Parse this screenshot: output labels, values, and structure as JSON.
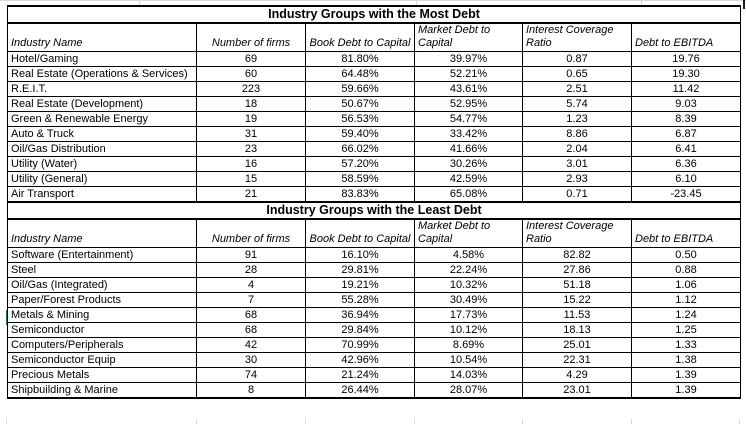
{
  "colors": {
    "table_border": "#000000",
    "grid_line": "#d9d9d9",
    "selection_marker_green": "#1f7244",
    "text": "#000000",
    "background": "#ffffff"
  },
  "tables": [
    {
      "title": "Industry Groups with the Most Debt",
      "columns": [
        "Industry Name",
        "Number of firms",
        "Book Debt to Capital",
        "Market Debt to Capital",
        "Interest Coverage Ratio",
        "Debt to EBITDA"
      ],
      "rows": [
        [
          "Hotel/Gaming",
          "69",
          "81.80%",
          "39.97%",
          "0.87",
          "19.76"
        ],
        [
          "Real Estate (Operations & Services)",
          "60",
          "64.48%",
          "52.21%",
          "0.65",
          "19.30"
        ],
        [
          "R.E.I.T.",
          "223",
          "59.66%",
          "43.61%",
          "2.51",
          "11.42"
        ],
        [
          "Real Estate (Development)",
          "18",
          "50.67%",
          "52.95%",
          "5.74",
          "9.03"
        ],
        [
          "Green & Renewable Energy",
          "19",
          "56.53%",
          "54.77%",
          "1.23",
          "8.39"
        ],
        [
          "Auto & Truck",
          "31",
          "59.40%",
          "33.42%",
          "8.86",
          "6.87"
        ],
        [
          "Oil/Gas Distribution",
          "23",
          "66.02%",
          "41.66%",
          "2.04",
          "6.41"
        ],
        [
          "Utility (Water)",
          "16",
          "57.20%",
          "30.26%",
          "3.01",
          "6.36"
        ],
        [
          "Utility (General)",
          "15",
          "58.59%",
          "42.59%",
          "2.93",
          "6.10"
        ],
        [
          "Air Transport",
          "21",
          "83.83%",
          "65.08%",
          "0.71",
          "-23.45"
        ]
      ]
    },
    {
      "title": "Industry Groups with the Least Debt",
      "columns": [
        "Industry Name",
        "Number of firms",
        "Book Debt to Capital",
        "Market Debt to Capital",
        "Interest Coverage Ratio",
        "Debt to EBITDA"
      ],
      "rows": [
        [
          "Software (Entertainment)",
          "91",
          "16.10%",
          "4.58%",
          "82.82",
          "0.50"
        ],
        [
          "Steel",
          "28",
          "29.81%",
          "22.24%",
          "27.86",
          "0.88"
        ],
        [
          "Oil/Gas (Integrated)",
          "4",
          "19.21%",
          "10.32%",
          "51.18",
          "1.06"
        ],
        [
          "Paper/Forest Products",
          "7",
          "55.28%",
          "30.49%",
          "15.22",
          "1.12"
        ],
        [
          "Metals & Mining",
          "68",
          "36.94%",
          "17.73%",
          "11.53",
          "1.24"
        ],
        [
          "Semiconductor",
          "68",
          "29.84%",
          "10.12%",
          "18.13",
          "1.25"
        ],
        [
          "Computers/Peripherals",
          "42",
          "70.99%",
          "8.69%",
          "25.01",
          "1.33"
        ],
        [
          "Semiconductor Equip",
          "30",
          "42.96%",
          "10.54%",
          "22.31",
          "1.38"
        ],
        [
          "Precious Metals",
          "74",
          "21.24%",
          "14.03%",
          "4.29",
          "1.39"
        ],
        [
          "Shipbuilding & Marine",
          "8",
          "26.44%",
          "28.07%",
          "23.01",
          "1.39"
        ]
      ]
    }
  ]
}
